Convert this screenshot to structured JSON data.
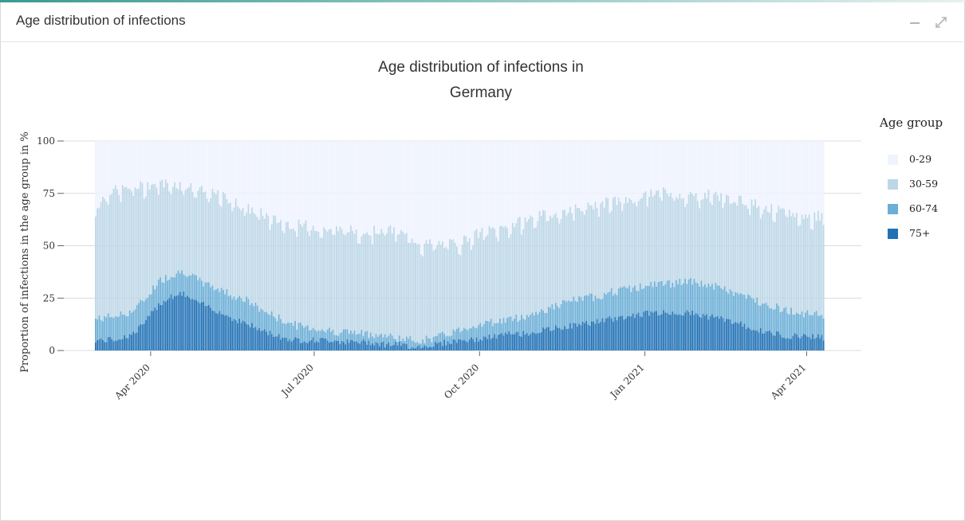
{
  "panel": {
    "title": "Age distribution of infections",
    "minimize_icon": "minus-icon",
    "expand_icon": "expand-icon"
  },
  "chart_data": {
    "type": "bar",
    "stacked": true,
    "title_line1": "Age distribution of infections in",
    "title_line2": "Germany",
    "ylabel": "Proportion of infections in the age group in %",
    "xlabel": "",
    "ylim": [
      0,
      100
    ],
    "yticks": [
      "0",
      "25",
      "50",
      "75",
      "100"
    ],
    "xticks": [
      {
        "label": "Apr 2020",
        "date": "2020-04-01"
      },
      {
        "label": "Jul 2020",
        "date": "2020-07-01"
      },
      {
        "label": "Oct 2020",
        "date": "2020-10-01"
      },
      {
        "label": "Jan 2021",
        "date": "2021-01-01"
      },
      {
        "label": "Apr 2021",
        "date": "2021-04-01"
      }
    ],
    "x_range": [
      "2020-03-01",
      "2021-04-11"
    ],
    "legend_title": "Age group",
    "legend_position": "right",
    "grid": true,
    "series": [
      {
        "name": "0-29",
        "color": "#eff3ff"
      },
      {
        "name": "30-59",
        "color": "#bdd7e7"
      },
      {
        "name": "60-74",
        "color": "#6baed6"
      },
      {
        "name": "75+",
        "color": "#2171b5"
      }
    ],
    "cumulative_upper_bounds_weekly": {
      "note_dates": "weekly samples, in %",
      "dates": [
        "2020-03-01",
        "2020-03-08",
        "2020-03-15",
        "2020-03-22",
        "2020-03-29",
        "2020-04-05",
        "2020-04-12",
        "2020-04-19",
        "2020-04-26",
        "2020-05-03",
        "2020-05-10",
        "2020-05-17",
        "2020-05-24",
        "2020-05-31",
        "2020-06-07",
        "2020-06-14",
        "2020-06-21",
        "2020-06-28",
        "2020-07-05",
        "2020-07-12",
        "2020-07-19",
        "2020-07-26",
        "2020-08-02",
        "2020-08-09",
        "2020-08-16",
        "2020-08-23",
        "2020-08-30",
        "2020-09-06",
        "2020-09-13",
        "2020-09-20",
        "2020-09-27",
        "2020-10-04",
        "2020-10-11",
        "2020-10-18",
        "2020-10-25",
        "2020-11-01",
        "2020-11-08",
        "2020-11-15",
        "2020-11-22",
        "2020-11-29",
        "2020-12-06",
        "2020-12-13",
        "2020-12-20",
        "2020-12-27",
        "2021-01-03",
        "2021-01-10",
        "2021-01-17",
        "2021-01-24",
        "2021-01-31",
        "2021-02-07",
        "2021-02-14",
        "2021-02-21",
        "2021-02-28",
        "2021-03-07",
        "2021-03-14",
        "2021-03-21",
        "2021-03-28",
        "2021-04-04",
        "2021-04-11"
      ],
      "upper_30_59": [
        68,
        76,
        77,
        78,
        79,
        80,
        80,
        79,
        77,
        75,
        74,
        71,
        68,
        66,
        63,
        61,
        60,
        60,
        58,
        58,
        58,
        57,
        57,
        58,
        57,
        54,
        51,
        51,
        51,
        52,
        55,
        57,
        58,
        60,
        62,
        64,
        65,
        66,
        68,
        69,
        70,
        71,
        72,
        73,
        75,
        76,
        75,
        74,
        74,
        75,
        73,
        72,
        71,
        69,
        67,
        66,
        64,
        64,
        65
      ],
      "upper_60_74": [
        15,
        16,
        17,
        19,
        25,
        33,
        36,
        38,
        34,
        31,
        29,
        26,
        24,
        20,
        17,
        14,
        12,
        11,
        10,
        9,
        9,
        8,
        8,
        7,
        6,
        5,
        5,
        6,
        8,
        10,
        12,
        13,
        14,
        15,
        16,
        18,
        20,
        22,
        24,
        25,
        26,
        28,
        29,
        30,
        31,
        32,
        32,
        33,
        32,
        31,
        29,
        27,
        25,
        23,
        21,
        19,
        18,
        17,
        17
      ],
      "upper_75_plus": [
        5,
        5,
        6,
        8,
        14,
        22,
        26,
        27,
        23,
        21,
        18,
        15,
        13,
        10,
        8,
        6,
        5,
        5,
        5,
        5,
        4,
        4,
        4,
        3,
        3,
        2,
        2,
        3,
        4,
        5,
        5,
        6,
        7,
        8,
        8,
        9,
        10,
        11,
        12,
        13,
        14,
        15,
        16,
        17,
        18,
        18,
        18,
        18,
        17,
        16,
        15,
        13,
        11,
        9,
        8,
        7,
        7,
        7,
        6
      ]
    }
  }
}
